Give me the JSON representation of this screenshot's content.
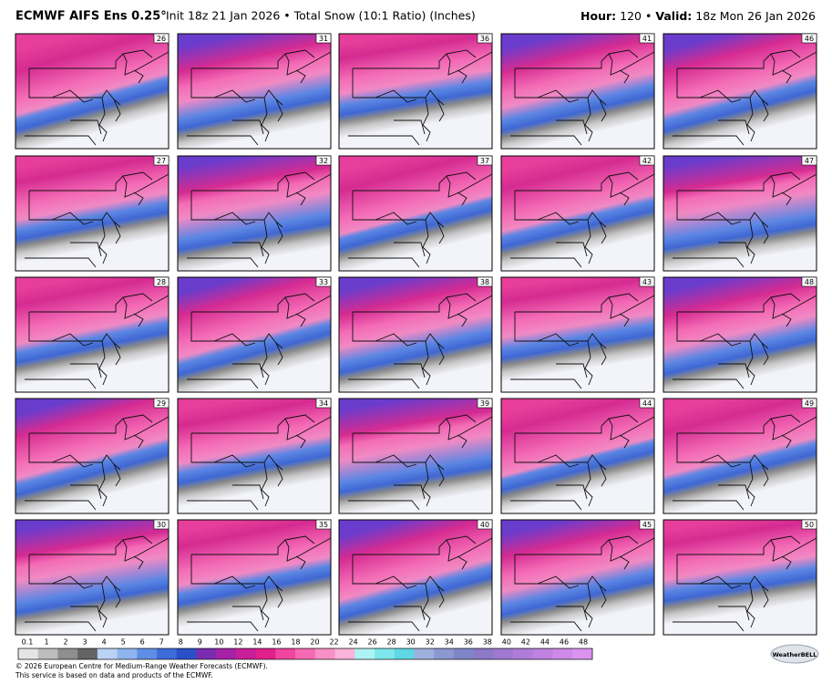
{
  "header": {
    "model": "ECMWF AIFS Ens 0.25°",
    "subtitle": "Init 18z 21 Jan 2026 • Total Snow (10:1 Ratio) (Inches)",
    "hour_label": "Hour:",
    "hour": "120 •",
    "valid_label": "Valid:",
    "valid": "18z Mon 26 Jan 2026"
  },
  "panels": [
    26,
    31,
    36,
    41,
    46,
    27,
    32,
    37,
    42,
    47,
    28,
    33,
    38,
    43,
    48,
    29,
    34,
    39,
    44,
    49,
    30,
    35,
    40,
    45,
    50
  ],
  "colorbar": {
    "labels": [
      0.1,
      1,
      2,
      3,
      4,
      5,
      6,
      7,
      8,
      9,
      10,
      12,
      14,
      16,
      18,
      20,
      22,
      24,
      26,
      28,
      30,
      32,
      34,
      36,
      38,
      40,
      42,
      44,
      46,
      48
    ],
    "colors": [
      "#e4e4e4",
      "#bdbdbd",
      "#8e8e8e",
      "#646464",
      "#b9d3f5",
      "#8fb5ee",
      "#5f8fe4",
      "#3d6bd8",
      "#2a4fc8",
      "#7a2bb0",
      "#a522a6",
      "#c81e98",
      "#e2208c",
      "#f0449f",
      "#f56ab3",
      "#f88fc6",
      "#fbb3d9",
      "#aef3f3",
      "#7ee8ec",
      "#5fd7e4",
      "#9fb0dc",
      "#8c98d0",
      "#7f86c8",
      "#8e78c8",
      "#a078d0",
      "#b17cd8",
      "#bf82e0",
      "#cd8ae8",
      "#da94f0"
    ]
  },
  "footer": {
    "line1": "© 2026 European Centre for Medium-Range Weather Forecasts (ECMWF).",
    "line2": "This service is based on data and products of the ECMWF.",
    "logo": "WeatherBELL"
  }
}
